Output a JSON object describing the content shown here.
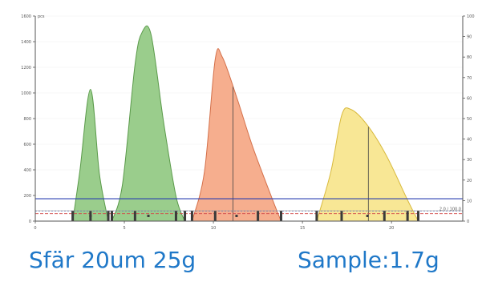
{
  "chart_data": {
    "type": "area",
    "y_left_unit": "pcs",
    "y_left_ticks": [
      "1600",
      "1400",
      "1200",
      "1000",
      "800",
      "600",
      "400",
      "200",
      "0"
    ],
    "y_right_ticks": [
      "100",
      "90",
      "80",
      "70",
      "60",
      "50",
      "40",
      "30",
      "20",
      "10",
      "0"
    ],
    "x_ticks": [
      "0",
      "5",
      "10",
      "15",
      "20"
    ],
    "x_range": [
      0,
      24
    ],
    "y_range": [
      0,
      1650
    ],
    "reference_line_blue": 180,
    "reference_line_red": 60,
    "threshold_label": "2.0 / 100.0",
    "peaks": [
      {
        "color": "#8fc87f",
        "edge": "#5a9a4a",
        "x": [
          2.1,
          2.5,
          3.1,
          3.6,
          4.1
        ],
        "y": [
          0,
          400,
          1060,
          380,
          0
        ]
      },
      {
        "color": "#8fc87f",
        "edge": "#5a9a4a",
        "x": [
          4.3,
          4.9,
          5.6,
          6.0,
          6.5,
          7.2,
          7.9,
          8.4
        ],
        "y": [
          0,
          300,
          1260,
          1520,
          1500,
          800,
          200,
          0
        ]
      },
      {
        "color": "#f5a582",
        "edge": "#d4704a",
        "x": [
          8.8,
          9.5,
          10.1,
          10.5,
          11.3,
          12.2,
          13.3,
          13.8
        ],
        "y": [
          0,
          400,
          1300,
          1320,
          1000,
          600,
          180,
          0
        ]
      },
      {
        "color": "#f7e48a",
        "edge": "#d8b93c",
        "x": [
          15.8,
          16.6,
          17.2,
          17.7,
          18.6,
          19.7,
          20.9,
          21.5
        ],
        "y": [
          0,
          400,
          850,
          900,
          780,
          530,
          170,
          0
        ]
      }
    ],
    "medians": [
      11.1,
      18.7
    ],
    "gate_marks": [
      2.1,
      3.1,
      4.1,
      4.3,
      5.6,
      7.9,
      8.4,
      8.8,
      10.1,
      12.5,
      13.8,
      15.8,
      17.2,
      19.6,
      20.9,
      21.5
    ]
  },
  "caption": {
    "left": "Sfär 20um 25g",
    "right": "Sample:1.7g"
  }
}
